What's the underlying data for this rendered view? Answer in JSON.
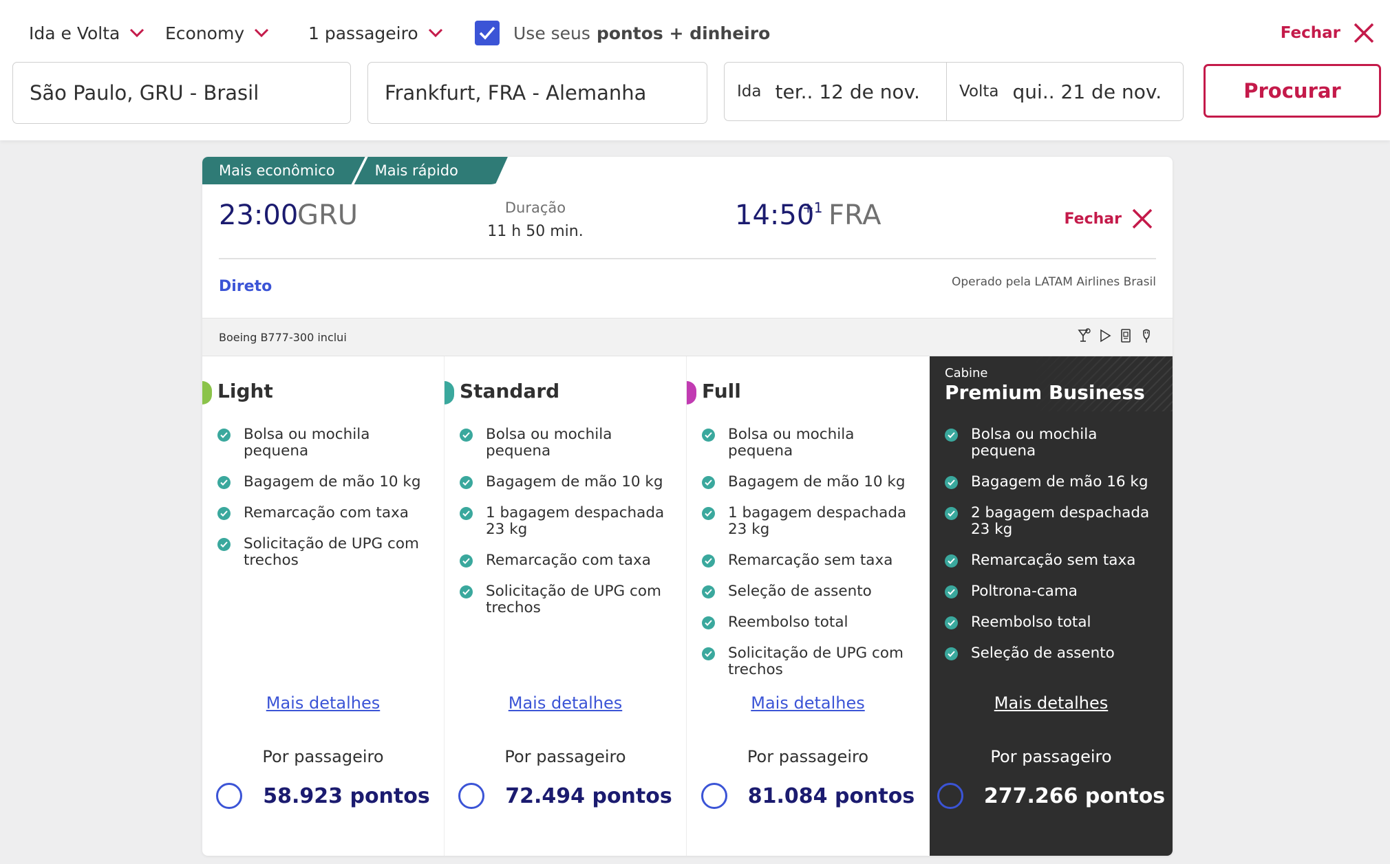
{
  "search": {
    "trip_type": "Ida e Volta",
    "cabin": "Economy",
    "passengers": "1 passageiro",
    "use_points_prefix": "Use seus",
    "use_points_bold": "pontos + dinheiro",
    "use_points_checked": true,
    "close_label": "Fechar",
    "origin": "São Paulo, GRU - Brasil",
    "destination": "Frankfurt, FRA - Alemanha",
    "outbound_label": "Ida",
    "outbound_date": "ter.. 12 de nov.",
    "return_label": "Volta",
    "return_date": "qui.. 21 de nov.",
    "search_button": "Procurar"
  },
  "flight": {
    "tags": [
      "Mais econômico",
      "Mais rápido"
    ],
    "departure_time": "23:00",
    "departure_airport": "GRU",
    "duration_label": "Duração",
    "duration": "11 h 50 min.",
    "arrival_time": "14:50",
    "arrival_day_offset": "+1",
    "arrival_airport": "FRA",
    "close_label": "Fechar",
    "stops": "Direto",
    "operated_by": "Operado pela LATAM Airlines Brasil",
    "aircraft": "Boeing B777-300 inclui",
    "amenity_icons": [
      "cocktail-icon",
      "play-icon",
      "power-outlet-icon",
      "usb-icon"
    ]
  },
  "fares": [
    {
      "name": "Light",
      "accent_color": "#8bc34a",
      "features": [
        "Bolsa ou mochila pequena",
        "Bagagem de mão 10 kg",
        "Remarcação com taxa",
        "Solicitação de UPG com trechos"
      ],
      "details": "Mais detalhes",
      "per_passenger": "Por passageiro",
      "price": "58.923 pontos"
    },
    {
      "name": "Standard",
      "accent_color": "#3aa89d",
      "features": [
        "Bolsa ou mochila pequena",
        "Bagagem de mão 10 kg",
        "1 bagagem despachada 23 kg",
        "Remarcação com taxa",
        "Solicitação de UPG com trechos"
      ],
      "details": "Mais detalhes",
      "per_passenger": "Por passageiro",
      "price": "72.494 pontos"
    },
    {
      "name": "Full",
      "accent_color": "#c13bb2",
      "features": [
        "Bolsa ou mochila pequena",
        "Bagagem de mão 10 kg",
        "1 bagagem despachada 23 kg",
        "Remarcação sem taxa",
        "Seleção de assento",
        "Reembolso total",
        "Solicitação de UPG com trechos"
      ],
      "details": "Mais detalhes",
      "per_passenger": "Por passageiro",
      "price": "81.084 pontos"
    },
    {
      "cabin_label": "Cabine",
      "name": "Premium Business",
      "features": [
        "Bolsa ou mochila pequena",
        "Bagagem de mão 16 kg",
        "2 bagagem despachada 23 kg",
        "Remarcação sem taxa",
        "Poltrona-cama",
        "Reembolso total",
        "Seleção de assento"
      ],
      "details": "Mais detalhes",
      "per_passenger": "Por passageiro",
      "price": "277.266 pontos"
    }
  ],
  "colors": {
    "brand_red": "#c41a4a",
    "link_blue": "#3b54d6",
    "navy": "#1b1b6f",
    "teal": "#2f7b76",
    "check_green": "#3aa89d",
    "premium_bg": "#2e2e2e"
  }
}
